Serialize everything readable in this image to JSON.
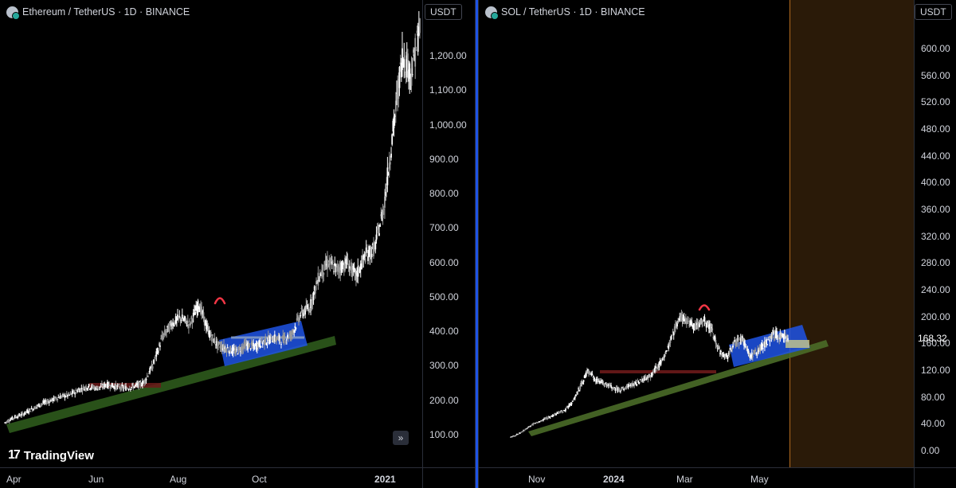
{
  "chart_data": [
    {
      "type": "candlestick",
      "title": "Ethereum / TetherUS · 1D · BINANCE",
      "currency": "USDT",
      "y_ticks": [
        100,
        200,
        300,
        400,
        500,
        600,
        700,
        800,
        900,
        1000,
        1100,
        1200
      ],
      "y_tick_labels": [
        "100.00",
        "200.00",
        "300.00",
        "400.00",
        "500.00",
        "600.00",
        "700.00",
        "800.00",
        "900.00",
        "1,000.00",
        "1,100.00",
        "1,200.00"
      ],
      "x_labels": [
        "Apr",
        "Jun",
        "Aug",
        "Oct",
        "2021"
      ],
      "approx_closes": [
        135,
        150,
        160,
        175,
        190,
        200,
        210,
        215,
        230,
        240,
        235,
        245,
        240,
        235,
        240,
        250,
        300,
        380,
        420,
        440,
        420,
        480,
        400,
        360,
        350,
        340,
        360,
        355,
        370,
        380,
        375,
        390,
        450,
        470,
        560,
        600,
        580,
        600,
        560,
        620,
        640,
        760,
        980,
        1200,
        1150,
        1300
      ],
      "annotations": [
        {
          "type": "trendline",
          "label": "support",
          "color": "#2e5a1c"
        },
        {
          "type": "channel",
          "label": "consolidation",
          "color": "#1e53e5"
        },
        {
          "type": "level",
          "label": "resistance",
          "color": "#6b1a1a"
        },
        {
          "type": "arc",
          "label": "top",
          "color": "#f23645"
        }
      ]
    },
    {
      "type": "candlestick",
      "title": "SOL / TetherUS · 1D · BINANCE",
      "currency": "USDT",
      "last_price": "168.32",
      "y_ticks": [
        0,
        40,
        80,
        120,
        160,
        200,
        240,
        280,
        320,
        360,
        400,
        440,
        480,
        520,
        560,
        600
      ],
      "y_tick_labels": [
        "0.00",
        "40.00",
        "80.00",
        "120.00",
        "160.00",
        "200.00",
        "240.00",
        "280.00",
        "320.00",
        "360.00",
        "400.00",
        "440.00",
        "480.00",
        "520.00",
        "560.00",
        "600.00"
      ],
      "x_labels": [
        "Nov",
        "2024",
        "Mar",
        "May"
      ],
      "approx_closes": [
        20,
        25,
        32,
        40,
        45,
        50,
        55,
        60,
        72,
        95,
        120,
        105,
        100,
        95,
        90,
        95,
        100,
        105,
        110,
        125,
        140,
        175,
        200,
        190,
        185,
        195,
        180,
        150,
        140,
        160,
        165,
        140,
        150,
        160,
        175,
        170,
        168
      ],
      "annotations": [
        {
          "type": "trendline",
          "label": "support",
          "color": "#4a6b28"
        },
        {
          "type": "channel",
          "label": "consolidation",
          "color": "#1e53e5"
        },
        {
          "type": "level",
          "label": "resistance",
          "color": "#6b1a1a"
        },
        {
          "type": "arc",
          "label": "top",
          "color": "#f23645"
        },
        {
          "type": "zone",
          "label": "future",
          "color": "#2a1a08"
        }
      ]
    }
  ],
  "logo_text": "TradingView"
}
